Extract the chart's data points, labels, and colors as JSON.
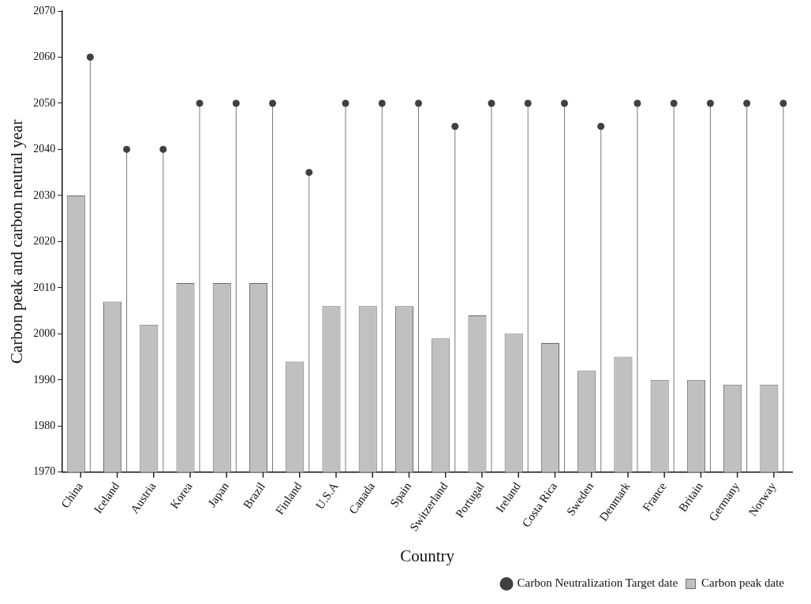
{
  "chart_data": {
    "type": "bar",
    "xlabel": "Country",
    "ylabel": "Carbon peak and carbon neutral year",
    "categories": [
      "China",
      "Iceland",
      "Austria",
      "Korea",
      "Japan",
      "Brazil",
      "Finland",
      "U.S.A",
      "Canada",
      "Spain",
      "Switzerland",
      "Portugal",
      "Ireland",
      "Costa Rica",
      "Sweden",
      "Denmark",
      "France",
      "Britain",
      "Germany",
      "Norway"
    ],
    "ylim": [
      1970,
      2070
    ],
    "yticks": [
      1970,
      1980,
      1990,
      2000,
      2010,
      2020,
      2030,
      2040,
      2050,
      2060,
      2070
    ],
    "grid": false,
    "legend": "bottom right",
    "marker": "circle",
    "series": [
      {
        "name": "Carbon peak date",
        "color": "#c0c0c0",
        "values": [
          2030,
          2007,
          2002,
          2011,
          2011,
          2011,
          1994,
          2006,
          2006,
          2006,
          1999,
          2004,
          2000,
          1998,
          1992,
          1995,
          1990,
          1990,
          1989,
          1989
        ]
      },
      {
        "name": "Carbon Neutralization Target date",
        "type": "lollipop",
        "color": "#404040",
        "values": [
          2060,
          2040,
          2040,
          2050,
          2050,
          2050,
          2035,
          2050,
          2050,
          2050,
          2045,
          2050,
          2050,
          2050,
          2045,
          2050,
          2050,
          2050,
          2050,
          2050
        ]
      }
    ]
  }
}
